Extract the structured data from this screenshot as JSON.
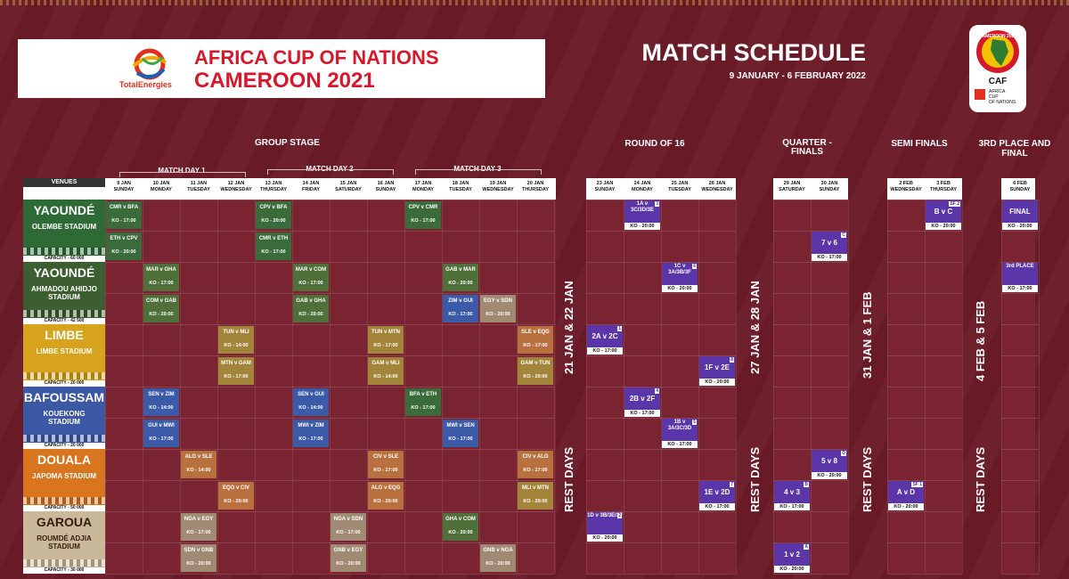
{
  "header": {
    "brand": "TotalEnergies",
    "tournament_line1": "AFRICA CUP OF NATIONS",
    "tournament_line2": "CAMEROON 2021",
    "schedule_title": "MATCH SCHEDULE",
    "schedule_dates": "9 JANUARY - 6 FEBRUARY 2022",
    "caf_logo_text": [
      "CAMEROON 2021",
      "CAF",
      "AFRICA",
      "CUP",
      "OF NATIONS"
    ]
  },
  "stages": {
    "group": "GROUP STAGE",
    "r16": "ROUND OF 16",
    "qf": "QUARTER - FINALS",
    "sf": "SEMI FINALS",
    "final": "3RD PLACE AND FINAL"
  },
  "matchdays": [
    "MATCH DAY 1",
    "MATCH DAY 2",
    "MATCH DAY 3"
  ],
  "venues_label": "VENUES",
  "group_dates": [
    [
      "9 JAN",
      "SUNDAY"
    ],
    [
      "10 JAN",
      "MONDAY"
    ],
    [
      "11 JAN",
      "TUESDAY"
    ],
    [
      "12 JAN",
      "WEDNESDAY"
    ],
    [
      "13 JAN",
      "THURSDAY"
    ],
    [
      "14 JAN",
      "FRIDAY"
    ],
    [
      "15 JAN",
      "SATURDAY"
    ],
    [
      "16 JAN",
      "SUNDAY"
    ],
    [
      "17 JAN",
      "MONDAY"
    ],
    [
      "18 JAN",
      "TUESDAY"
    ],
    [
      "19 JAN",
      "WEDNESDAY"
    ],
    [
      "20 JAN",
      "THURSDAY"
    ]
  ],
  "r16_dates": [
    [
      "23 JAN",
      "SUNDAY"
    ],
    [
      "24 JAN",
      "MONDAY"
    ],
    [
      "25 JAN",
      "TUESDAY"
    ],
    [
      "26 JAN",
      "WEDNESDAY"
    ]
  ],
  "qf_dates": [
    [
      "29 JAN",
      "SATURDAY"
    ],
    [
      "30 JAN",
      "SUNDAY"
    ]
  ],
  "sf_dates": [
    [
      "2 FEB",
      "WEDNESDAY"
    ],
    [
      "3 FEB",
      "THURSDAY"
    ]
  ],
  "final_dates": [
    [
      "6 FEB",
      "SUNDAY"
    ]
  ],
  "venues": [
    {
      "city": "YAOUNDÉ",
      "stadium": "OLEMBE STADIUM",
      "capacity": "CAPACITY - 60 000",
      "color": "#2e6a35"
    },
    {
      "city": "YAOUNDÉ",
      "stadium": "AHMADOU AHIDJO STADIUM",
      "capacity": "CAPACITY - 42 500",
      "color": "#3d5e30"
    },
    {
      "city": "LIMBE",
      "stadium": "LIMBE STADIUM",
      "capacity": "CAPACITY - 20 000",
      "color": "#d7a21c"
    },
    {
      "city": "BAFOUSSAM",
      "stadium": "KOUEKONG STADIUM",
      "capacity": "CAPACITY - 20 000",
      "color": "#3c58a4"
    },
    {
      "city": "DOUALA",
      "stadium": "JAPOMA STADIUM",
      "capacity": "CAPACITY - 50 000",
      "color": "#d9741f"
    },
    {
      "city": "GAROUA",
      "stadium": "ROUMDÉ ADJIA STADIUM",
      "capacity": "CAPACITY - 30 000",
      "color": "#c9b99a"
    }
  ],
  "group_matches": [
    {
      "row": 0,
      "col": 0,
      "m": "CMR v BFA",
      "ko": "KO - 17:00",
      "c": "green"
    },
    {
      "row": 1,
      "col": 0,
      "m": "ETH v CPV",
      "ko": "KO - 20:00",
      "c": "green"
    },
    {
      "row": 0,
      "col": 4,
      "m": "CPV v BFA",
      "ko": "KO - 20:00",
      "c": "green"
    },
    {
      "row": 1,
      "col": 4,
      "m": "CMR v ETH",
      "ko": "KO - 17:00",
      "c": "green"
    },
    {
      "row": 0,
      "col": 8,
      "m": "CPV v CMR",
      "ko": "KO - 17:00",
      "c": "green"
    },
    {
      "row": 2,
      "col": 1,
      "m": "MAR v GHA",
      "ko": "KO - 17:00",
      "c": "olive"
    },
    {
      "row": 3,
      "col": 1,
      "m": "COM v GAB",
      "ko": "KO - 20:00",
      "c": "olive"
    },
    {
      "row": 2,
      "col": 5,
      "m": "MAR v COM",
      "ko": "KO - 17:00",
      "c": "olive"
    },
    {
      "row": 3,
      "col": 5,
      "m": "GAB v GHA",
      "ko": "KO - 20:00",
      "c": "olive"
    },
    {
      "row": 2,
      "col": 9,
      "m": "GAB v MAR",
      "ko": "KO - 20:00",
      "c": "olive"
    },
    {
      "row": 3,
      "col": 9,
      "m": "ZIM v GUI",
      "ko": "KO - 17:00",
      "c": "blue"
    },
    {
      "row": 3,
      "col": 10,
      "m": "EGY v SDN",
      "ko": "KO - 20:00",
      "c": "tan"
    },
    {
      "row": 4,
      "col": 3,
      "m": "TUN v MLI",
      "ko": "KO - 14:00",
      "c": "gold"
    },
    {
      "row": 5,
      "col": 3,
      "m": "MTN v GAM",
      "ko": "KO - 17:00",
      "c": "gold"
    },
    {
      "row": 4,
      "col": 7,
      "m": "TUN v MTN",
      "ko": "KO - 17:00",
      "c": "gold"
    },
    {
      "row": 5,
      "col": 7,
      "m": "GAM v MLI",
      "ko": "KO - 14:00",
      "c": "gold"
    },
    {
      "row": 4,
      "col": 11,
      "m": "SLE v EQG",
      "ko": "KO - 17:00",
      "c": "orange"
    },
    {
      "row": 5,
      "col": 11,
      "m": "GAM v TUN",
      "ko": "KO - 20:00",
      "c": "gold"
    },
    {
      "row": 6,
      "col": 1,
      "m": "SEN v ZIM",
      "ko": "KO - 14:00",
      "c": "blue"
    },
    {
      "row": 7,
      "col": 1,
      "m": "GUI v MWI",
      "ko": "KO - 17:00",
      "c": "blue"
    },
    {
      "row": 6,
      "col": 5,
      "m": "SEN v GUI",
      "ko": "KO - 14:00",
      "c": "blue"
    },
    {
      "row": 7,
      "col": 5,
      "m": "MWI v ZIM",
      "ko": "KO - 17:00",
      "c": "blue"
    },
    {
      "row": 6,
      "col": 8,
      "m": "BFA v ETH",
      "ko": "KO - 17:00",
      "c": "green"
    },
    {
      "row": 7,
      "col": 9,
      "m": "MWI v SEN",
      "ko": "KO - 17:00",
      "c": "blue"
    },
    {
      "row": 8,
      "col": 2,
      "m": "ALG v SLE",
      "ko": "KO - 14:00",
      "c": "orange"
    },
    {
      "row": 9,
      "col": 3,
      "m": "EQG v CIV",
      "ko": "KO - 20:00",
      "c": "orange"
    },
    {
      "row": 8,
      "col": 7,
      "m": "CIV v SLE",
      "ko": "KO - 17:00",
      "c": "orange"
    },
    {
      "row": 9,
      "col": 7,
      "m": "ALG v EQG",
      "ko": "KO - 20:00",
      "c": "orange"
    },
    {
      "row": 8,
      "col": 11,
      "m": "CIV v ALG",
      "ko": "KO - 17:00",
      "c": "orange"
    },
    {
      "row": 9,
      "col": 11,
      "m": "MLI v MTN",
      "ko": "KO - 20:00",
      "c": "gold"
    },
    {
      "row": 10,
      "col": 2,
      "m": "NGA v EGY",
      "ko": "KO - 17:00",
      "c": "tan"
    },
    {
      "row": 11,
      "col": 2,
      "m": "SDN v GNB",
      "ko": "KO - 20:00",
      "c": "tan"
    },
    {
      "row": 10,
      "col": 6,
      "m": "NGA v SDN",
      "ko": "KO - 17:00",
      "c": "tan"
    },
    {
      "row": 11,
      "col": 6,
      "m": "GNB v EGY",
      "ko": "KO - 20:00",
      "c": "tan"
    },
    {
      "row": 10,
      "col": 9,
      "m": "GHA v COM",
      "ko": "KO - 20:00",
      "c": "olive"
    },
    {
      "row": 11,
      "col": 10,
      "m": "GNB v NGA",
      "ko": "KO - 20:00",
      "c": "tan"
    }
  ],
  "dividers": [
    {
      "dates": "21 JAN & 22 JAN",
      "rest": "REST DAYS"
    },
    {
      "dates": "27 JAN & 28 JAN",
      "rest": "REST DAYS"
    },
    {
      "dates": "31 JAN & 1 FEB",
      "rest": "REST DAYS"
    },
    {
      "dates": "4 FEB & 5 FEB",
      "rest": "REST DAYS"
    }
  ],
  "ko_matches": [
    {
      "id": "r16-3",
      "panel": "r16",
      "col": 1,
      "row": 0,
      "text": "1A v 3C/3D/3E",
      "ko": "KO - 20:00",
      "badge": "3"
    },
    {
      "id": "r16-6",
      "panel": "r16",
      "col": 2,
      "row": 2,
      "text": "1C v 3A/3B/3F",
      "ko": "KO - 20:00",
      "badge": "6"
    },
    {
      "id": "r16-1",
      "panel": "r16",
      "col": 0,
      "row": 4,
      "text": "2A v 2C",
      "ko": "KO - 17:00",
      "badge": "1"
    },
    {
      "id": "r16-8",
      "panel": "r16",
      "col": 3,
      "row": 5,
      "text": "1F v 2E",
      "ko": "KO - 20:00",
      "badge": "8"
    },
    {
      "id": "r16-4",
      "panel": "r16",
      "col": 1,
      "row": 6,
      "text": "2B v 2F",
      "ko": "KO - 17:00",
      "badge": "4"
    },
    {
      "id": "r16-5",
      "panel": "r16",
      "col": 2,
      "row": 7,
      "text": "1B v 3A/3C/3D",
      "ko": "KO - 17:00",
      "badge": "5"
    },
    {
      "id": "r16-7",
      "panel": "r16",
      "col": 3,
      "row": 9,
      "text": "1E v 2D",
      "ko": "KO - 17:00",
      "badge": "7"
    },
    {
      "id": "r16-2",
      "panel": "r16",
      "col": 0,
      "row": 10,
      "text": "1D v 3B/3E/3F",
      "ko": "KO - 20:00",
      "badge": "2"
    },
    {
      "id": "qf-c",
      "panel": "qf",
      "col": 1,
      "row": 1,
      "text": "7 v 6",
      "ko": "KO - 17:00",
      "badge": "C"
    },
    {
      "id": "qf-d",
      "panel": "qf",
      "col": 1,
      "row": 8,
      "text": "5 v 8",
      "ko": "KO - 20:00",
      "badge": "D"
    },
    {
      "id": "qf-b",
      "panel": "qf",
      "col": 0,
      "row": 9,
      "text": "4 v 3",
      "ko": "KO - 17:00",
      "badge": "B"
    },
    {
      "id": "qf-a",
      "panel": "qf",
      "col": 0,
      "row": 11,
      "text": "1 v 2",
      "ko": "KO - 20:00",
      "badge": "A"
    },
    {
      "id": "sf-2",
      "panel": "sf",
      "col": 1,
      "row": 0,
      "text": "B v C",
      "ko": "KO - 20:00",
      "badge": "SF 2"
    },
    {
      "id": "sf-1",
      "panel": "sf",
      "col": 0,
      "row": 9,
      "text": "A v D",
      "ko": "KO - 20:00",
      "badge": "SF 1"
    },
    {
      "id": "final",
      "panel": "final",
      "col": 0,
      "row": 0,
      "text": "FINAL",
      "ko": "KO - 20:00",
      "badge": ""
    },
    {
      "id": "third",
      "panel": "final",
      "col": 0,
      "row": 2,
      "text": "3rd PLACE",
      "ko": "KO - 17:00",
      "badge": ""
    }
  ],
  "colors": {
    "background": "#6b1c28",
    "header_red": "#d5182a",
    "knockout_purple": "#5a36a8"
  }
}
